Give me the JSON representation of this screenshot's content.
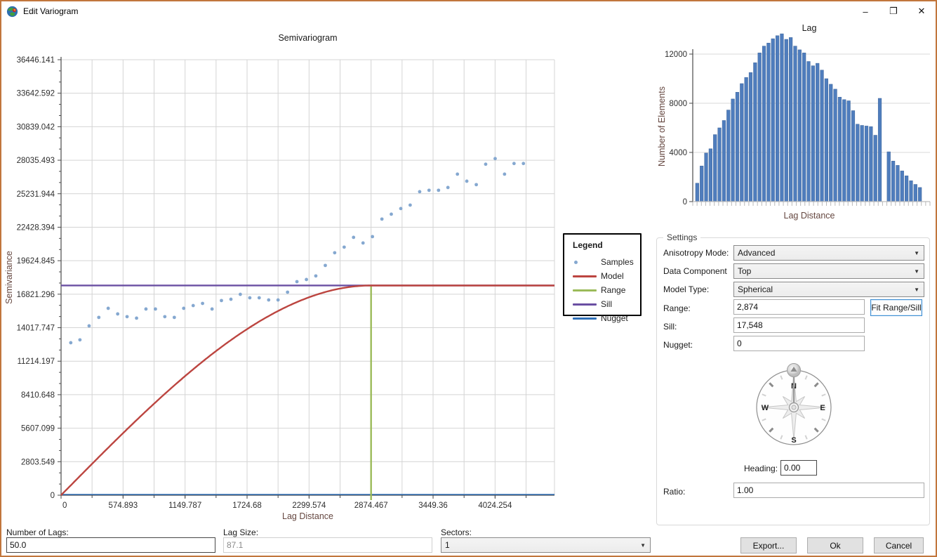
{
  "window": {
    "title": "Edit Variogram",
    "controls": {
      "minimize": "–",
      "maximize": "❐",
      "close": "✕"
    }
  },
  "legend": {
    "title": "Legend",
    "items": [
      {
        "label": "Samples",
        "marker": "dot",
        "color": "#85a8d0"
      },
      {
        "label": "Model",
        "marker": "line",
        "color": "#bc4540"
      },
      {
        "label": "Range",
        "marker": "line",
        "color": "#9bbb59"
      },
      {
        "label": "Sill",
        "marker": "line",
        "color": "#6a4fa2"
      },
      {
        "label": "Nugget",
        "marker": "line",
        "color": "#2f6fb7"
      }
    ]
  },
  "settings": {
    "group_label": "Settings",
    "anisotropy_mode": {
      "label": "Anisotropy Mode:",
      "value": "Advanced"
    },
    "data_component": {
      "label": "Data Component",
      "value": "Top"
    },
    "model_type": {
      "label": "Model Type:",
      "value": "Spherical"
    },
    "range": {
      "label": "Range:",
      "value": "2,874"
    },
    "fit_button_label": "Fit Range/Sill",
    "sill": {
      "label": "Sill:",
      "value": "17,548"
    },
    "nugget": {
      "label": "Nugget:",
      "value": "0"
    },
    "compass": {
      "north": "N",
      "east": "E",
      "south": "S",
      "west": "W"
    },
    "heading": {
      "label": "Heading:",
      "value": "0.00"
    },
    "ratio": {
      "label": "Ratio:",
      "value": "1.00"
    }
  },
  "bottom": {
    "number_of_lags": {
      "label": "Number of Lags:",
      "value": "50.0"
    },
    "lag_size": {
      "label": "Lag Size:",
      "value": "87.1"
    },
    "sectors": {
      "label": "Sectors:",
      "value": "1"
    },
    "buttons": {
      "export": "Export...",
      "ok": "Ok",
      "cancel": "Cancel"
    }
  },
  "chart_data": [
    {
      "id": "semivariogram",
      "type": "scatter",
      "title": "Semivariogram",
      "xlabel": "Lag Distance",
      "ylabel": "Semivariance",
      "xlim": [
        0,
        4575
      ],
      "ylim": [
        0,
        36446.141
      ],
      "grid": true,
      "x_grid_step": 287.4467,
      "xticks": [
        "0",
        "574.893",
        "1149.787",
        "1724.68",
        "2299.574",
        "2874.467",
        "3449.36",
        "4024.254"
      ],
      "yticks": [
        "0",
        "2803.549",
        "5607.099",
        "8410.648",
        "11214.197",
        "14017.747",
        "16821.296",
        "19624.845",
        "22428.394",
        "25231.944",
        "28035.493",
        "30839.042",
        "33642.592",
        "36446.141"
      ],
      "model": {
        "type": "Spherical",
        "range": 2874.467,
        "sill": 17548,
        "nugget": 0
      },
      "series": [
        {
          "name": "Samples",
          "x": [
            90,
            175,
            260,
            350,
            437,
            525,
            612,
            700,
            787,
            875,
            962,
            1050,
            1137,
            1225,
            1312,
            1400,
            1487,
            1575,
            1662,
            1750,
            1837,
            1925,
            2012,
            2100,
            2187,
            2275,
            2362,
            2450,
            2537,
            2625,
            2712,
            2800,
            2887,
            2975,
            3062,
            3150,
            3237,
            3325,
            3412,
            3500,
            3587,
            3675,
            3762,
            3850,
            3937,
            4025,
            4112,
            4200,
            4287
          ],
          "y": [
            12760,
            13000,
            14170,
            14880,
            15640,
            15170,
            14940,
            14820,
            15580,
            15580,
            14940,
            14880,
            15640,
            15870,
            16050,
            15580,
            16290,
            16400,
            16810,
            16520,
            16520,
            16340,
            16340,
            16990,
            17870,
            18050,
            18350,
            19230,
            20290,
            20760,
            21580,
            21110,
            21640,
            23110,
            23520,
            23990,
            24280,
            25400,
            25520,
            25520,
            25750,
            26870,
            26280,
            25990,
            27700,
            28170,
            26870,
            27760,
            27760
          ]
        }
      ],
      "colors": {
        "samples": "#85a8d0",
        "model": "#bc4540",
        "range": "#9bbb59",
        "sill": "#6a4fa2",
        "nugget": "#2f6fb7",
        "grid": "#d4d4d4",
        "axis": "#4a4a4a",
        "axis_title": "#654740",
        "tick_label": "#2e2e2e"
      }
    },
    {
      "id": "lag-histogram",
      "type": "bar",
      "title": "Lag",
      "xlabel": "Lag Distance",
      "ylabel": "Number of Elements",
      "ylim": [
        0,
        13800
      ],
      "yticks": [
        "0",
        "4000",
        "8000",
        "12000"
      ],
      "values": [
        1500,
        2900,
        3950,
        4300,
        5450,
        6000,
        6600,
        7450,
        8350,
        8900,
        9600,
        10100,
        10500,
        11300,
        12100,
        12650,
        12900,
        13250,
        13500,
        13650,
        13200,
        13350,
        12650,
        12350,
        12100,
        11400,
        11050,
        11250,
        10700,
        10000,
        9550,
        9150,
        8500,
        8300,
        8200,
        7400,
        6300,
        6200,
        6150,
        6100,
        5400,
        8400,
        0,
        4050,
        3300,
        2950,
        2500,
        2100,
        1700,
        1400,
        1150
      ],
      "colors": {
        "bar": "#4f7dbd",
        "bar_edge": "#40679c",
        "grid": "#d9d9d9",
        "axis": "#4a4a4a",
        "axis_title": "#654740",
        "tick_label": "#2e2e2e"
      }
    }
  ]
}
